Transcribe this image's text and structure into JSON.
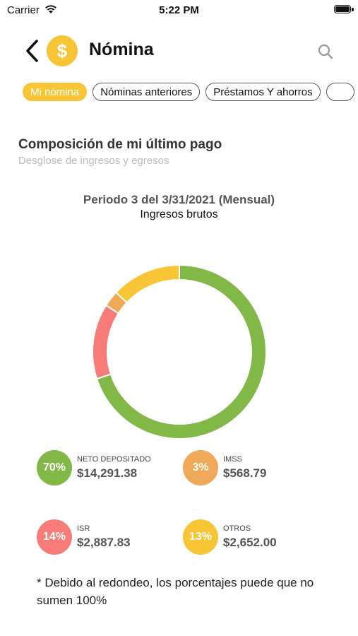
{
  "status_bar": {
    "carrier": "Carrier",
    "time": "5:22 PM"
  },
  "header": {
    "title": "Nómina",
    "coin_symbol": "$"
  },
  "tabs": [
    {
      "label": "Mi nómina",
      "active": true
    },
    {
      "label": "Nóminas anteriores",
      "active": false
    },
    {
      "label": "Préstamos Y ahorros",
      "active": false
    },
    {
      "label": "",
      "active": false
    }
  ],
  "section": {
    "title": "Composición de mi último pago",
    "subtitle": "Desglose de ingresos y egresos"
  },
  "period": {
    "line1": "Periodo 3 del 3/31/2021 (Mensual)",
    "line2": "Ingresos brutos"
  },
  "legend": [
    {
      "pct": "70%",
      "name": "NETO DEPOSITADO",
      "amount": "$14,291.38",
      "color": "#82b847"
    },
    {
      "pct": "3%",
      "name": "IMSS",
      "amount": "$568.79",
      "color": "#f0a958"
    },
    {
      "pct": "14%",
      "name": "ISR",
      "amount": "$2,887.83",
      "color": "#f77b78"
    },
    {
      "pct": "13%",
      "name": "OTROS",
      "amount": "$2,652.00",
      "color": "#f7c535"
    }
  ],
  "chart_data": {
    "type": "pie",
    "categories": [
      "NETO DEPOSITADO",
      "ISR",
      "IMSS",
      "OTROS"
    ],
    "values": [
      70,
      14,
      3,
      13
    ],
    "colors": [
      "#82b847",
      "#f77b78",
      "#f0a958",
      "#f7c535"
    ]
  },
  "note": "* Debido al redondeo, los porcentajes puede que no sumen 100%",
  "colors": {
    "accent": "#f7c535"
  }
}
